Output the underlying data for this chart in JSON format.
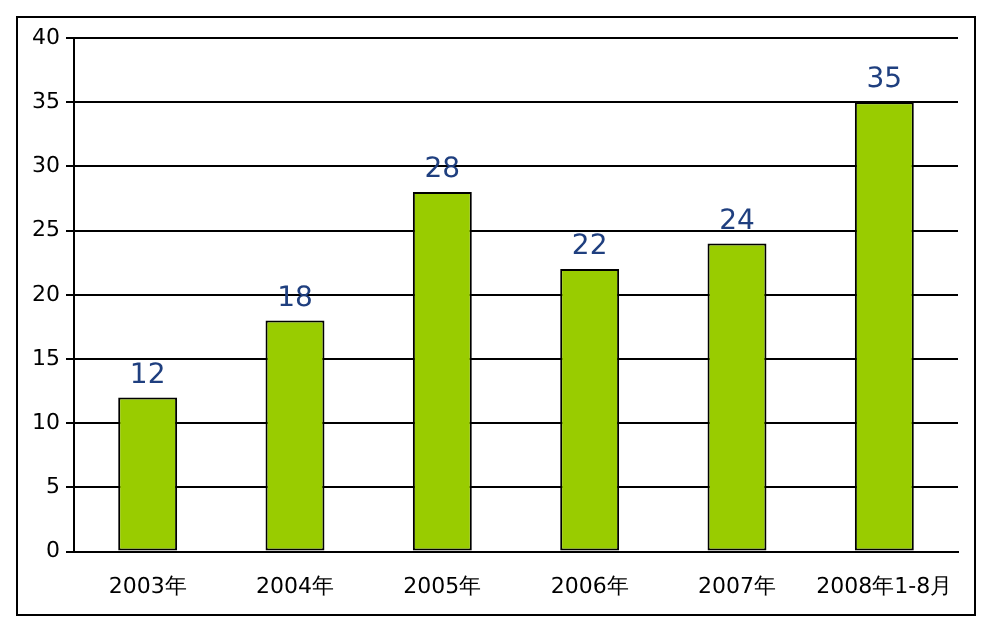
{
  "chart_data": {
    "type": "bar",
    "categories": [
      "2003年",
      "2004年",
      "2005年",
      "2006年",
      "2007年",
      "2008年1-8月"
    ],
    "values": [
      12,
      18,
      28,
      22,
      24,
      35
    ],
    "color": "#99cc00",
    "ylim": [
      0,
      40
    ],
    "yticks": [
      0,
      5,
      10,
      15,
      20,
      25,
      30,
      35,
      40
    ],
    "grid": "y",
    "data_labels": true
  }
}
